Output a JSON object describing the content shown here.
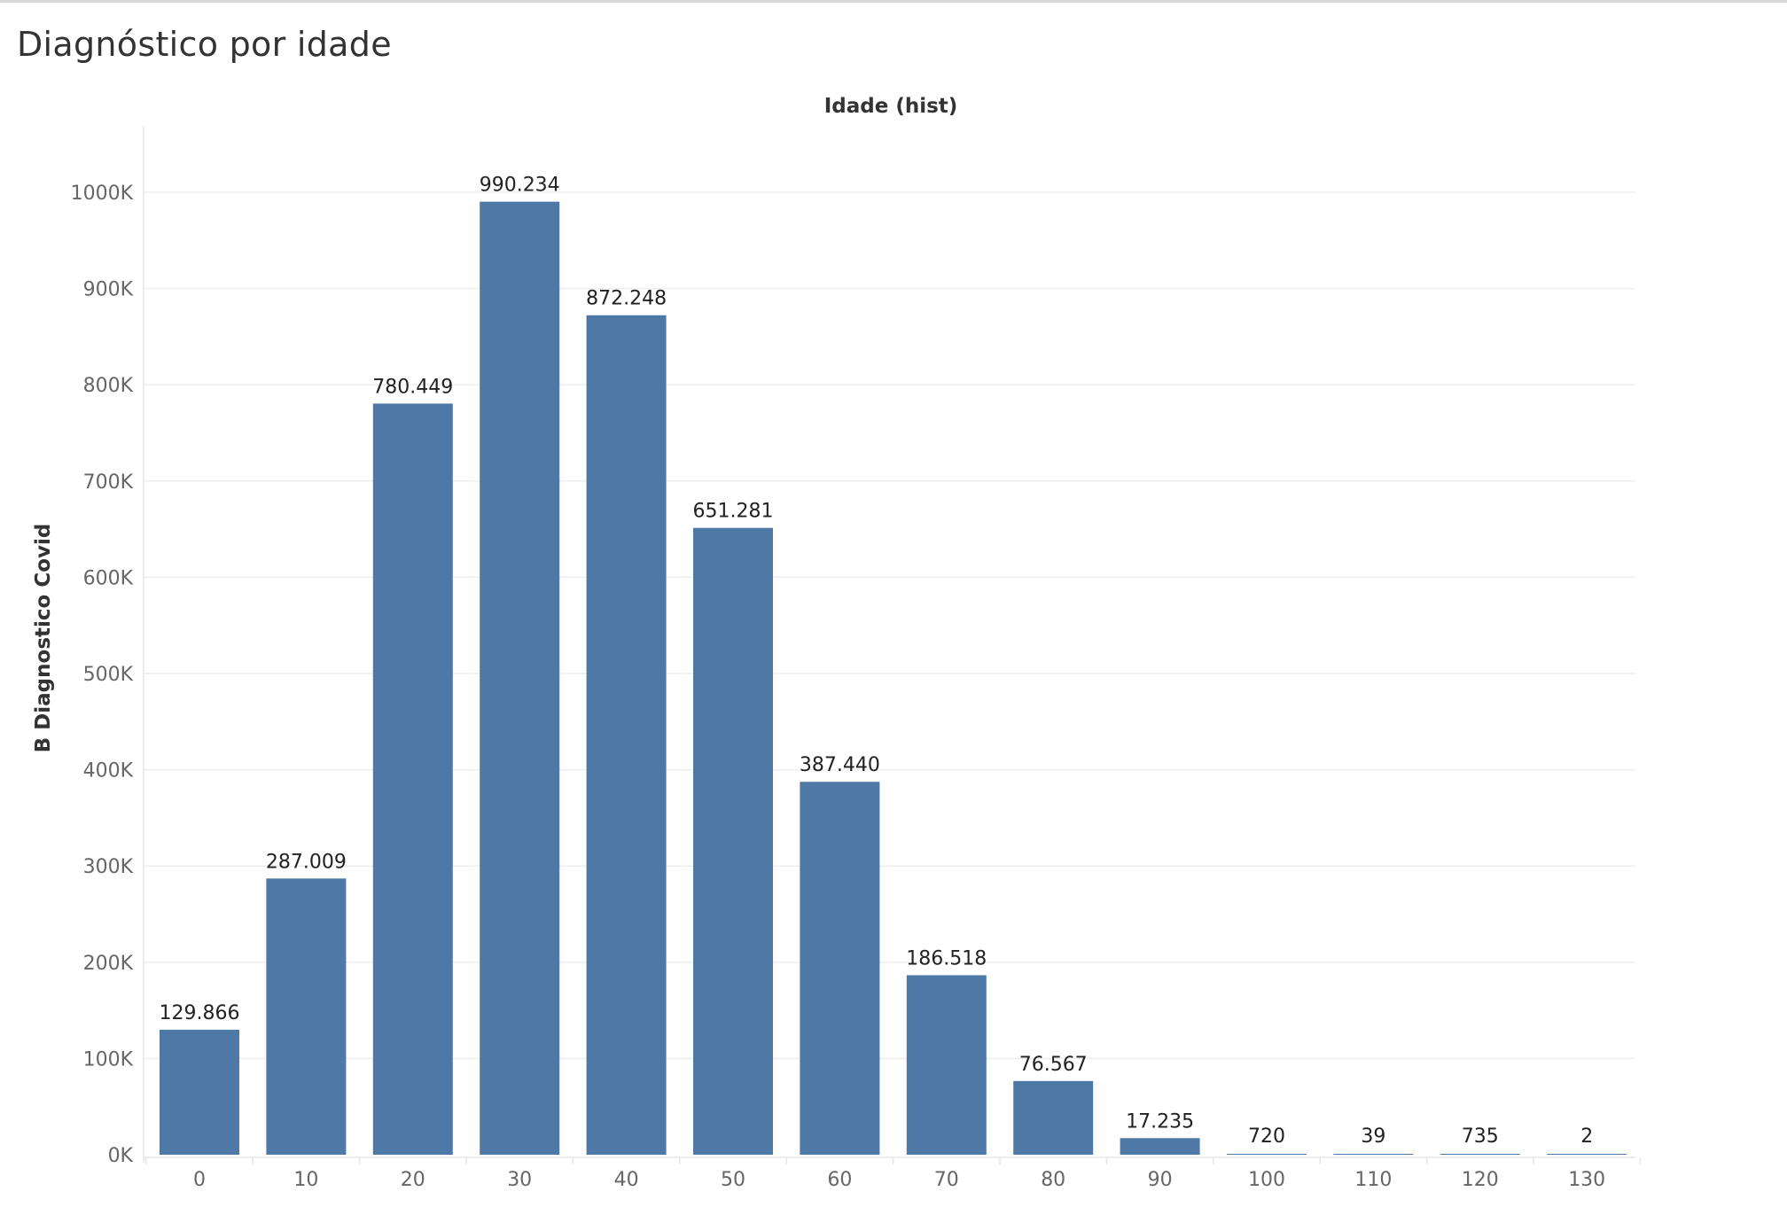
{
  "page": {
    "title": "Diagnóstico por idade"
  },
  "chart_data": {
    "type": "bar",
    "xlabel": "Idade (hist)",
    "ylabel": "B Diagnostico Covid",
    "categories": [
      "0",
      "10",
      "20",
      "30",
      "40",
      "50",
      "60",
      "70",
      "80",
      "90",
      "100",
      "110",
      "120",
      "130"
    ],
    "values": [
      129866,
      287009,
      780449,
      990234,
      872248,
      651281,
      387440,
      186518,
      76567,
      17235,
      720,
      39,
      735,
      2
    ],
    "value_labels": [
      "129.866",
      "287.009",
      "780.449",
      "990.234",
      "872.248",
      "651.281",
      "387.440",
      "186.518",
      "76.567",
      "17.235",
      "720",
      "39",
      "735",
      "2"
    ],
    "ylim": [
      0,
      1000000
    ],
    "yticks": [
      0,
      100000,
      200000,
      300000,
      400000,
      500000,
      600000,
      700000,
      800000,
      900000,
      1000000
    ],
    "ytick_labels": [
      "0K",
      "100K",
      "200K",
      "300K",
      "400K",
      "500K",
      "600K",
      "700K",
      "800K",
      "900K",
      "1000K"
    ],
    "grid": true,
    "colors": {
      "bar": "#4e79a7",
      "grid": "#eeeeee",
      "axis": "#e6e6e6"
    }
  }
}
